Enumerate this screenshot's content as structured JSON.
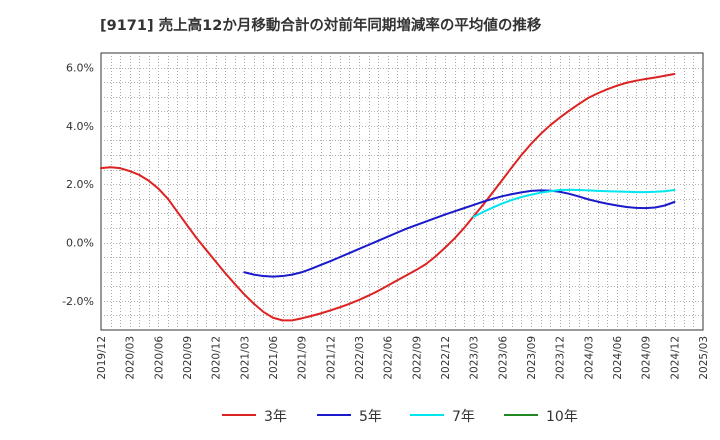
{
  "title": "[9171]  売上高12か月移動合計の対前年同期増減率の平均値の推移",
  "chart_data": {
    "type": "line",
    "x_ticks": [
      "2019/12",
      "2020/03",
      "2020/06",
      "2020/09",
      "2020/12",
      "2021/03",
      "2021/06",
      "2021/09",
      "2021/12",
      "2022/03",
      "2022/06",
      "2022/09",
      "2022/12",
      "2023/03",
      "2023/06",
      "2023/09",
      "2023/12",
      "2024/03",
      "2024/06",
      "2024/09",
      "2024/12",
      "2025/03"
    ],
    "y_ticks": [
      "-2.0%",
      "0.0%",
      "2.0%",
      "4.0%",
      "6.0%"
    ],
    "y_tick_values": [
      -2,
      0,
      2,
      4,
      6
    ],
    "ylim": [
      -3.0,
      6.5
    ],
    "grid": true,
    "legend_position": "bottom",
    "series": [
      {
        "name": "3年",
        "color": "#dd2222",
        "points": [
          [
            "2019/12",
            2.55
          ],
          [
            "2020/01",
            2.58
          ],
          [
            "2020/02",
            2.55
          ],
          [
            "2020/03",
            2.45
          ],
          [
            "2020/04",
            2.32
          ],
          [
            "2020/05",
            2.12
          ],
          [
            "2020/06",
            1.85
          ],
          [
            "2020/07",
            1.5
          ],
          [
            "2020/08",
            1.05
          ],
          [
            "2020/09",
            0.6
          ],
          [
            "2020/10",
            0.15
          ],
          [
            "2020/11",
            -0.25
          ],
          [
            "2020/12",
            -0.65
          ],
          [
            "2021/01",
            -1.05
          ],
          [
            "2021/02",
            -1.42
          ],
          [
            "2021/03",
            -1.78
          ],
          [
            "2021/04",
            -2.1
          ],
          [
            "2021/05",
            -2.38
          ],
          [
            "2021/06",
            -2.58
          ],
          [
            "2021/07",
            -2.67
          ],
          [
            "2021/08",
            -2.67
          ],
          [
            "2021/09",
            -2.6
          ],
          [
            "2021/10",
            -2.52
          ],
          [
            "2021/11",
            -2.43
          ],
          [
            "2021/12",
            -2.33
          ],
          [
            "2022/01",
            -2.22
          ],
          [
            "2022/02",
            -2.1
          ],
          [
            "2022/03",
            -1.97
          ],
          [
            "2022/04",
            -1.82
          ],
          [
            "2022/05",
            -1.66
          ],
          [
            "2022/06",
            -1.48
          ],
          [
            "2022/07",
            -1.3
          ],
          [
            "2022/08",
            -1.12
          ],
          [
            "2022/09",
            -0.94
          ],
          [
            "2022/10",
            -0.74
          ],
          [
            "2022/11",
            -0.48
          ],
          [
            "2022/12",
            -0.18
          ],
          [
            "2023/01",
            0.14
          ],
          [
            "2023/02",
            0.5
          ],
          [
            "2023/03",
            0.9
          ],
          [
            "2023/04",
            1.3
          ],
          [
            "2023/05",
            1.72
          ],
          [
            "2023/06",
            2.15
          ],
          [
            "2023/07",
            2.58
          ],
          [
            "2023/08",
            3.0
          ],
          [
            "2023/09",
            3.38
          ],
          [
            "2023/10",
            3.72
          ],
          [
            "2023/11",
            4.02
          ],
          [
            "2023/12",
            4.28
          ],
          [
            "2024/01",
            4.52
          ],
          [
            "2024/02",
            4.75
          ],
          [
            "2024/03",
            4.96
          ],
          [
            "2024/04",
            5.12
          ],
          [
            "2024/05",
            5.26
          ],
          [
            "2024/06",
            5.38
          ],
          [
            "2024/07",
            5.48
          ],
          [
            "2024/08",
            5.55
          ],
          [
            "2024/09",
            5.61
          ],
          [
            "2024/10",
            5.66
          ],
          [
            "2024/11",
            5.72
          ],
          [
            "2024/12",
            5.78
          ]
        ]
      },
      {
        "name": "5年",
        "color": "#1a1acc",
        "points": [
          [
            "2021/03",
            -1.02
          ],
          [
            "2021/04",
            -1.1
          ],
          [
            "2021/05",
            -1.15
          ],
          [
            "2021/06",
            -1.17
          ],
          [
            "2021/07",
            -1.15
          ],
          [
            "2021/08",
            -1.1
          ],
          [
            "2021/09",
            -1.02
          ],
          [
            "2021/10",
            -0.9
          ],
          [
            "2021/11",
            -0.77
          ],
          [
            "2021/12",
            -0.64
          ],
          [
            "2022/01",
            -0.5
          ],
          [
            "2022/02",
            -0.36
          ],
          [
            "2022/03",
            -0.22
          ],
          [
            "2022/04",
            -0.08
          ],
          [
            "2022/05",
            0.06
          ],
          [
            "2022/06",
            0.2
          ],
          [
            "2022/07",
            0.34
          ],
          [
            "2022/08",
            0.48
          ],
          [
            "2022/09",
            0.6
          ],
          [
            "2022/10",
            0.72
          ],
          [
            "2022/11",
            0.84
          ],
          [
            "2022/12",
            0.96
          ],
          [
            "2023/01",
            1.07
          ],
          [
            "2023/02",
            1.18
          ],
          [
            "2023/03",
            1.29
          ],
          [
            "2023/04",
            1.4
          ],
          [
            "2023/05",
            1.5
          ],
          [
            "2023/06",
            1.59
          ],
          [
            "2023/07",
            1.66
          ],
          [
            "2023/08",
            1.72
          ],
          [
            "2023/09",
            1.77
          ],
          [
            "2023/10",
            1.79
          ],
          [
            "2023/11",
            1.78
          ],
          [
            "2023/12",
            1.74
          ],
          [
            "2024/01",
            1.67
          ],
          [
            "2024/02",
            1.58
          ],
          [
            "2024/03",
            1.48
          ],
          [
            "2024/04",
            1.4
          ],
          [
            "2024/05",
            1.33
          ],
          [
            "2024/06",
            1.27
          ],
          [
            "2024/07",
            1.22
          ],
          [
            "2024/08",
            1.19
          ],
          [
            "2024/09",
            1.18
          ],
          [
            "2024/10",
            1.2
          ],
          [
            "2024/11",
            1.27
          ],
          [
            "2024/12",
            1.39
          ]
        ]
      },
      {
        "name": "7年",
        "color": "#00e5ee",
        "points": [
          [
            "2023/03",
            0.88
          ],
          [
            "2023/04",
            1.05
          ],
          [
            "2023/05",
            1.2
          ],
          [
            "2023/06",
            1.34
          ],
          [
            "2023/07",
            1.46
          ],
          [
            "2023/08",
            1.56
          ],
          [
            "2023/09",
            1.64
          ],
          [
            "2023/10",
            1.71
          ],
          [
            "2023/11",
            1.76
          ],
          [
            "2023/12",
            1.8
          ],
          [
            "2024/01",
            1.81
          ],
          [
            "2024/02",
            1.8
          ],
          [
            "2024/03",
            1.79
          ],
          [
            "2024/04",
            1.77
          ],
          [
            "2024/05",
            1.76
          ],
          [
            "2024/06",
            1.75
          ],
          [
            "2024/07",
            1.74
          ],
          [
            "2024/08",
            1.73
          ],
          [
            "2024/09",
            1.73
          ],
          [
            "2024/10",
            1.74
          ],
          [
            "2024/11",
            1.76
          ],
          [
            "2024/12",
            1.8
          ]
        ]
      },
      {
        "name": "10年",
        "color": "#228822",
        "points": []
      }
    ]
  }
}
